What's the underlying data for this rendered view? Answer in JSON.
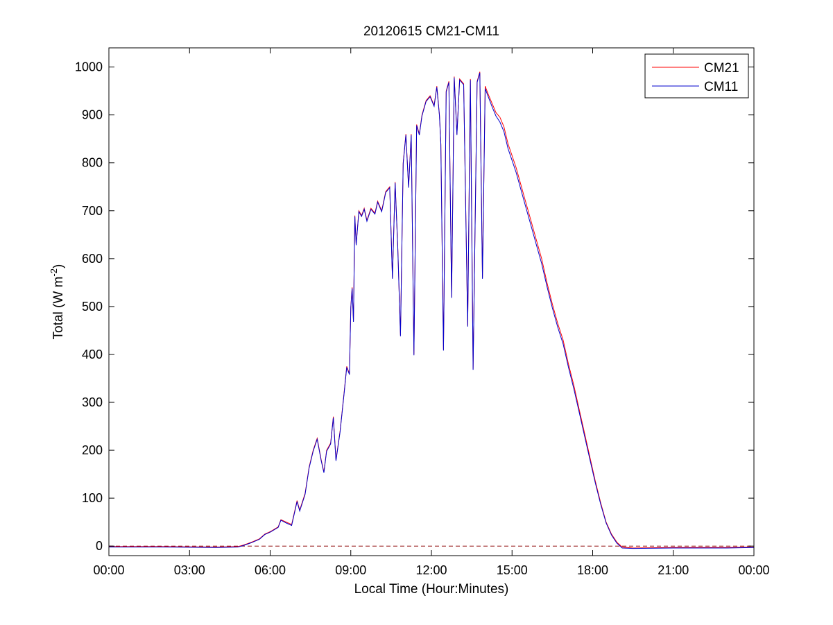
{
  "chart_data": {
    "type": "line",
    "title": "20120615 CM21-CM11",
    "xlabel": "Local Time (Hour:Minutes)",
    "ylabel": "Total (W m",
    "ylabel_sup": "-2",
    "ylabel_close": ")",
    "xlim": [
      0,
      24
    ],
    "ylim": [
      -20,
      1040
    ],
    "x_ticks": [
      {
        "value": 0,
        "label": "00:00"
      },
      {
        "value": 3,
        "label": "03:00"
      },
      {
        "value": 6,
        "label": "06:00"
      },
      {
        "value": 9,
        "label": "09:00"
      },
      {
        "value": 12,
        "label": "12:00"
      },
      {
        "value": 15,
        "label": "15:00"
      },
      {
        "value": 18,
        "label": "18:00"
      },
      {
        "value": 21,
        "label": "21:00"
      },
      {
        "value": 24,
        "label": "00:00"
      }
    ],
    "y_ticks": [
      {
        "value": 0,
        "label": "0"
      },
      {
        "value": 100,
        "label": "100"
      },
      {
        "value": 200,
        "label": "200"
      },
      {
        "value": 300,
        "label": "300"
      },
      {
        "value": 400,
        "label": "400"
      },
      {
        "value": 500,
        "label": "500"
      },
      {
        "value": 600,
        "label": "600"
      },
      {
        "value": 700,
        "label": "700"
      },
      {
        "value": 800,
        "label": "800"
      },
      {
        "value": 900,
        "label": "900"
      },
      {
        "value": 1000,
        "label": "1000"
      }
    ],
    "grid": false,
    "legend_position": "top-right",
    "reference_line": {
      "y": 0,
      "style": "dashed",
      "color": "#8b0000"
    },
    "series": [
      {
        "name": "CM21",
        "color": "#ff0000",
        "points": [
          [
            0,
            -1
          ],
          [
            2,
            -1
          ],
          [
            4,
            -2
          ],
          [
            4.8,
            -1
          ],
          [
            5.0,
            2
          ],
          [
            5.3,
            8
          ],
          [
            5.6,
            15
          ],
          [
            5.8,
            25
          ],
          [
            6.0,
            30
          ],
          [
            6.3,
            40
          ],
          [
            6.4,
            55
          ],
          [
            6.6,
            50
          ],
          [
            6.8,
            45
          ],
          [
            7.0,
            95
          ],
          [
            7.1,
            75
          ],
          [
            7.3,
            110
          ],
          [
            7.45,
            165
          ],
          [
            7.6,
            200
          ],
          [
            7.75,
            225
          ],
          [
            7.9,
            180
          ],
          [
            8.0,
            155
          ],
          [
            8.1,
            200
          ],
          [
            8.25,
            215
          ],
          [
            8.35,
            270
          ],
          [
            8.45,
            180
          ],
          [
            8.6,
            240
          ],
          [
            8.75,
            320
          ],
          [
            8.85,
            375
          ],
          [
            8.95,
            360
          ],
          [
            9.0,
            500
          ],
          [
            9.05,
            540
          ],
          [
            9.1,
            470
          ],
          [
            9.15,
            690
          ],
          [
            9.2,
            630
          ],
          [
            9.3,
            700
          ],
          [
            9.4,
            690
          ],
          [
            9.5,
            705
          ],
          [
            9.6,
            680
          ],
          [
            9.75,
            705
          ],
          [
            9.9,
            695
          ],
          [
            10.0,
            720
          ],
          [
            10.15,
            700
          ],
          [
            10.3,
            740
          ],
          [
            10.45,
            750
          ],
          [
            10.55,
            560
          ],
          [
            10.65,
            760
          ],
          [
            10.75,
            620
          ],
          [
            10.85,
            440
          ],
          [
            10.95,
            800
          ],
          [
            11.05,
            860
          ],
          [
            11.15,
            750
          ],
          [
            11.25,
            860
          ],
          [
            11.35,
            400
          ],
          [
            11.45,
            880
          ],
          [
            11.55,
            860
          ],
          [
            11.65,
            900
          ],
          [
            11.8,
            930
          ],
          [
            11.95,
            940
          ],
          [
            12.1,
            920
          ],
          [
            12.2,
            960
          ],
          [
            12.3,
            900
          ],
          [
            12.35,
            840
          ],
          [
            12.45,
            410
          ],
          [
            12.55,
            950
          ],
          [
            12.65,
            970
          ],
          [
            12.75,
            520
          ],
          [
            12.85,
            980
          ],
          [
            12.95,
            860
          ],
          [
            13.05,
            975
          ],
          [
            13.2,
            965
          ],
          [
            13.35,
            460
          ],
          [
            13.45,
            975
          ],
          [
            13.55,
            370
          ],
          [
            13.7,
            970
          ],
          [
            13.8,
            990
          ],
          [
            13.9,
            560
          ],
          [
            14.0,
            960
          ],
          [
            14.1,
            945
          ],
          [
            14.25,
            925
          ],
          [
            14.4,
            905
          ],
          [
            14.55,
            895
          ],
          [
            14.7,
            875
          ],
          [
            14.85,
            840
          ],
          [
            15.0,
            815
          ],
          [
            15.15,
            790
          ],
          [
            15.3,
            760
          ],
          [
            15.5,
            720
          ],
          [
            15.7,
            680
          ],
          [
            15.9,
            640
          ],
          [
            16.1,
            600
          ],
          [
            16.3,
            550
          ],
          [
            16.5,
            505
          ],
          [
            16.7,
            465
          ],
          [
            16.9,
            430
          ],
          [
            17.1,
            380
          ],
          [
            17.3,
            335
          ],
          [
            17.5,
            285
          ],
          [
            17.7,
            235
          ],
          [
            17.9,
            185
          ],
          [
            18.1,
            135
          ],
          [
            18.3,
            90
          ],
          [
            18.5,
            50
          ],
          [
            18.7,
            25
          ],
          [
            18.9,
            8
          ],
          [
            19.1,
            -2
          ],
          [
            19.5,
            -4
          ],
          [
            21,
            -3
          ],
          [
            23,
            -3
          ],
          [
            24,
            -2
          ]
        ]
      },
      {
        "name": "CM11",
        "color": "#0000cc",
        "points": [
          [
            0,
            -2
          ],
          [
            2,
            -2
          ],
          [
            4,
            -3
          ],
          [
            4.8,
            -2
          ],
          [
            5.0,
            1
          ],
          [
            5.3,
            7
          ],
          [
            5.6,
            14
          ],
          [
            5.8,
            24
          ],
          [
            6.0,
            29
          ],
          [
            6.3,
            39
          ],
          [
            6.4,
            54
          ],
          [
            6.6,
            48
          ],
          [
            6.8,
            43
          ],
          [
            7.0,
            93
          ],
          [
            7.1,
            73
          ],
          [
            7.3,
            108
          ],
          [
            7.45,
            163
          ],
          [
            7.6,
            198
          ],
          [
            7.75,
            223
          ],
          [
            7.9,
            178
          ],
          [
            8.0,
            153
          ],
          [
            8.1,
            198
          ],
          [
            8.25,
            213
          ],
          [
            8.35,
            268
          ],
          [
            8.45,
            178
          ],
          [
            8.6,
            238
          ],
          [
            8.75,
            318
          ],
          [
            8.85,
            373
          ],
          [
            8.95,
            358
          ],
          [
            9.0,
            498
          ],
          [
            9.05,
            538
          ],
          [
            9.1,
            468
          ],
          [
            9.15,
            688
          ],
          [
            9.2,
            628
          ],
          [
            9.3,
            698
          ],
          [
            9.4,
            688
          ],
          [
            9.5,
            703
          ],
          [
            9.6,
            678
          ],
          [
            9.75,
            703
          ],
          [
            9.9,
            693
          ],
          [
            10.0,
            718
          ],
          [
            10.15,
            698
          ],
          [
            10.3,
            738
          ],
          [
            10.45,
            748
          ],
          [
            10.55,
            558
          ],
          [
            10.65,
            758
          ],
          [
            10.75,
            618
          ],
          [
            10.85,
            438
          ],
          [
            10.95,
            798
          ],
          [
            11.05,
            858
          ],
          [
            11.15,
            748
          ],
          [
            11.25,
            858
          ],
          [
            11.35,
            398
          ],
          [
            11.45,
            878
          ],
          [
            11.55,
            858
          ],
          [
            11.65,
            898
          ],
          [
            11.8,
            928
          ],
          [
            11.95,
            938
          ],
          [
            12.1,
            918
          ],
          [
            12.2,
            958
          ],
          [
            12.3,
            898
          ],
          [
            12.35,
            838
          ],
          [
            12.45,
            408
          ],
          [
            12.55,
            948
          ],
          [
            12.65,
            968
          ],
          [
            12.75,
            518
          ],
          [
            12.85,
            978
          ],
          [
            12.95,
            858
          ],
          [
            13.05,
            973
          ],
          [
            13.2,
            963
          ],
          [
            13.35,
            458
          ],
          [
            13.45,
            973
          ],
          [
            13.55,
            368
          ],
          [
            13.7,
            968
          ],
          [
            13.8,
            988
          ],
          [
            13.9,
            558
          ],
          [
            14.0,
            955
          ],
          [
            14.1,
            940
          ],
          [
            14.25,
            918
          ],
          [
            14.4,
            898
          ],
          [
            14.55,
            885
          ],
          [
            14.7,
            865
          ],
          [
            14.85,
            830
          ],
          [
            15.0,
            805
          ],
          [
            15.15,
            780
          ],
          [
            15.3,
            750
          ],
          [
            15.5,
            710
          ],
          [
            15.7,
            670
          ],
          [
            15.9,
            630
          ],
          [
            16.1,
            590
          ],
          [
            16.3,
            542
          ],
          [
            16.5,
            497
          ],
          [
            16.7,
            457
          ],
          [
            16.9,
            422
          ],
          [
            17.1,
            373
          ],
          [
            17.3,
            328
          ],
          [
            17.5,
            279
          ],
          [
            17.7,
            229
          ],
          [
            17.9,
            180
          ],
          [
            18.1,
            131
          ],
          [
            18.3,
            87
          ],
          [
            18.5,
            48
          ],
          [
            18.7,
            23
          ],
          [
            18.9,
            6
          ],
          [
            19.1,
            -4
          ],
          [
            19.5,
            -5
          ],
          [
            21,
            -4
          ],
          [
            23,
            -4
          ],
          [
            24,
            -3
          ]
        ]
      }
    ]
  }
}
